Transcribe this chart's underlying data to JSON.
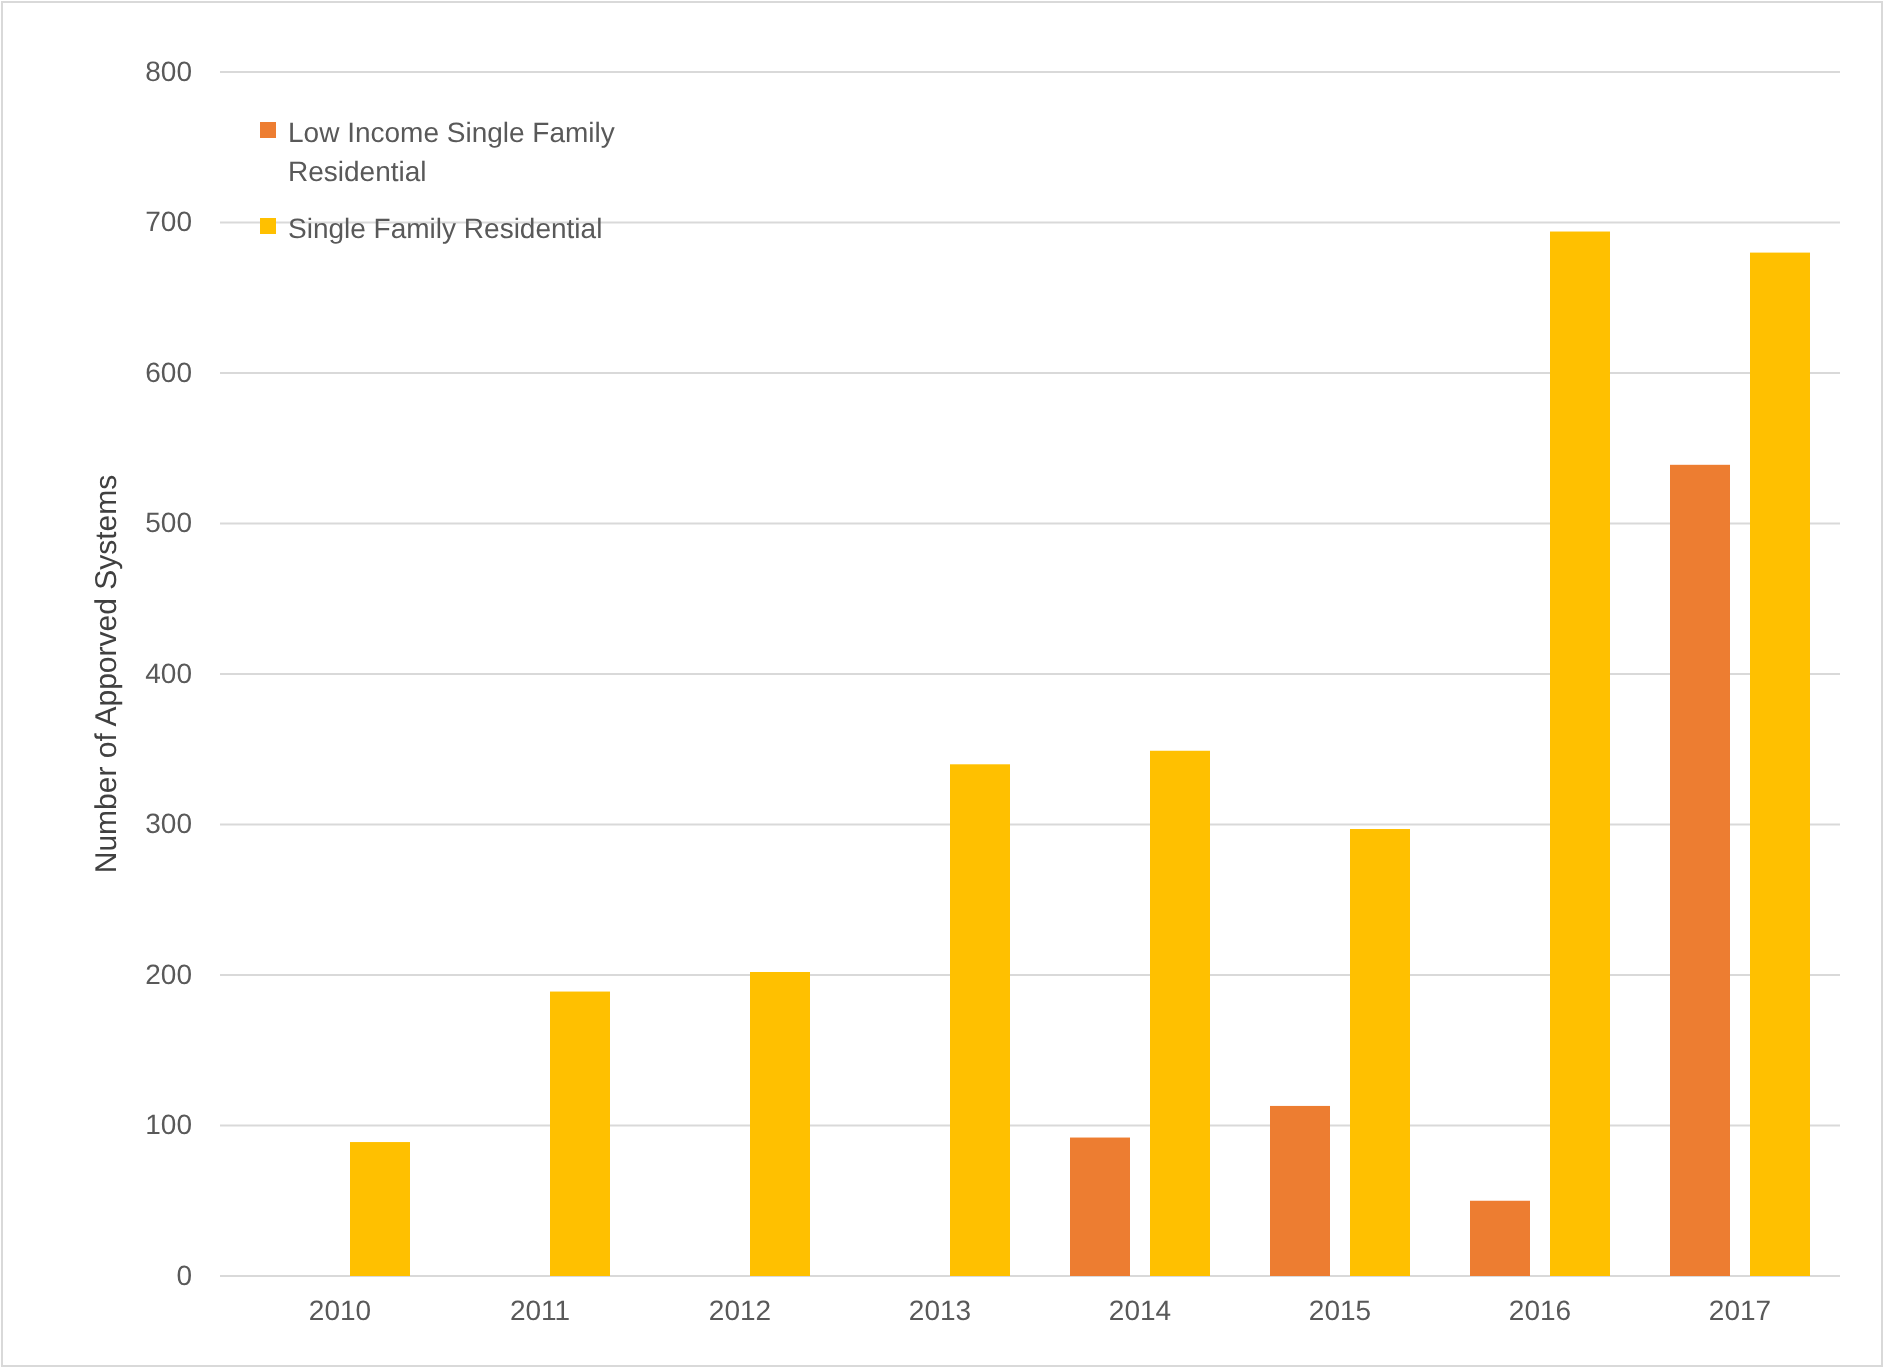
{
  "chart_data": {
    "type": "bar",
    "ylabel": "Number of Apporved Systems",
    "categories": [
      "2010",
      "2011",
      "2012",
      "2013",
      "2014",
      "2015",
      "2016",
      "2017"
    ],
    "series": [
      {
        "name": "Low Income Single Family Residential",
        "color": "#ed7d31",
        "values": [
          null,
          null,
          null,
          null,
          92,
          113,
          50,
          539
        ]
      },
      {
        "name": "Single Family Residential",
        "color": "#ffc000",
        "values": [
          89,
          189,
          202,
          340,
          349,
          297,
          694,
          680
        ]
      }
    ],
    "ylim": [
      0,
      800
    ],
    "yticks": [
      0,
      100,
      200,
      300,
      400,
      500,
      600,
      700,
      800
    ],
    "grid": "y",
    "legend": "top left"
  }
}
